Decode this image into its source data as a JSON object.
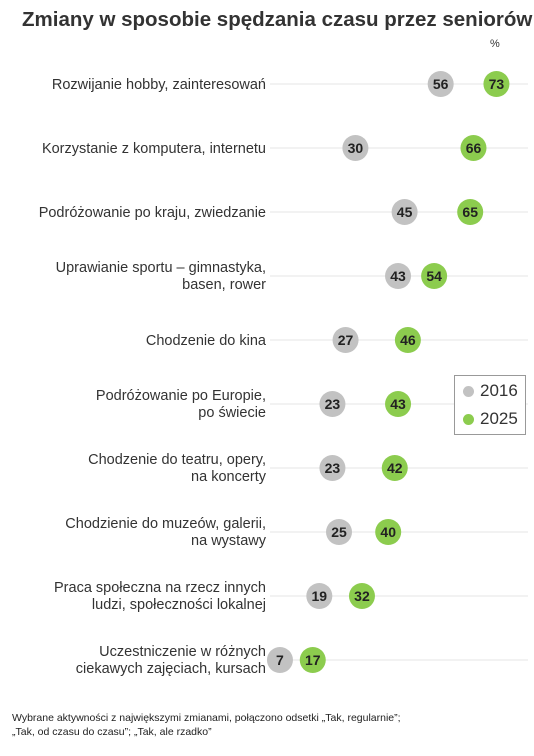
{
  "title": "Zmiany w sposobie spędzania czasu przez seniorów",
  "unit": "%",
  "footnote": [
    "Wybrane aktywności z największymi zmianami, połączono odsetki „Tak, regularnie”;",
    "„Tak, od czasu do czasu”; „Tak, ale rzadko”"
  ],
  "colors": {
    "y2016": "#c2c2c2",
    "y2025": "#8ccc4e",
    "line": "#e4e4e4"
  },
  "chart_data": {
    "type": "dot",
    "xlim": [
      0,
      80
    ],
    "categories": [
      [
        "Rozwijanie hobby, zainteresowań"
      ],
      [
        "Korzystanie z komputera, internetu"
      ],
      [
        "Podróżowanie po kraju, zwiedzanie"
      ],
      [
        "Uprawianie sportu – gimnastyka,",
        "basen, rower"
      ],
      [
        "Chodzenie do kina"
      ],
      [
        "Podróżowanie po Europie,",
        "po świecie"
      ],
      [
        "Chodzenie do teatru, opery,",
        "na koncerty"
      ],
      [
        "Chodzienie do muzeów, galerii,",
        "na wystawy"
      ],
      [
        "Praca społeczna na rzecz innych",
        "ludzi, społeczności lokalnej"
      ],
      [
        "Uczestniczenie w różnych",
        "ciekawych zajęciach, kursach"
      ]
    ],
    "series": [
      {
        "name": "2016",
        "values": [
          56,
          30,
          45,
          43,
          27,
          23,
          23,
          25,
          19,
          7
        ]
      },
      {
        "name": "2025",
        "values": [
          73,
          66,
          65,
          54,
          46,
          43,
          42,
          40,
          32,
          17
        ]
      }
    ],
    "legend_position": "right"
  }
}
